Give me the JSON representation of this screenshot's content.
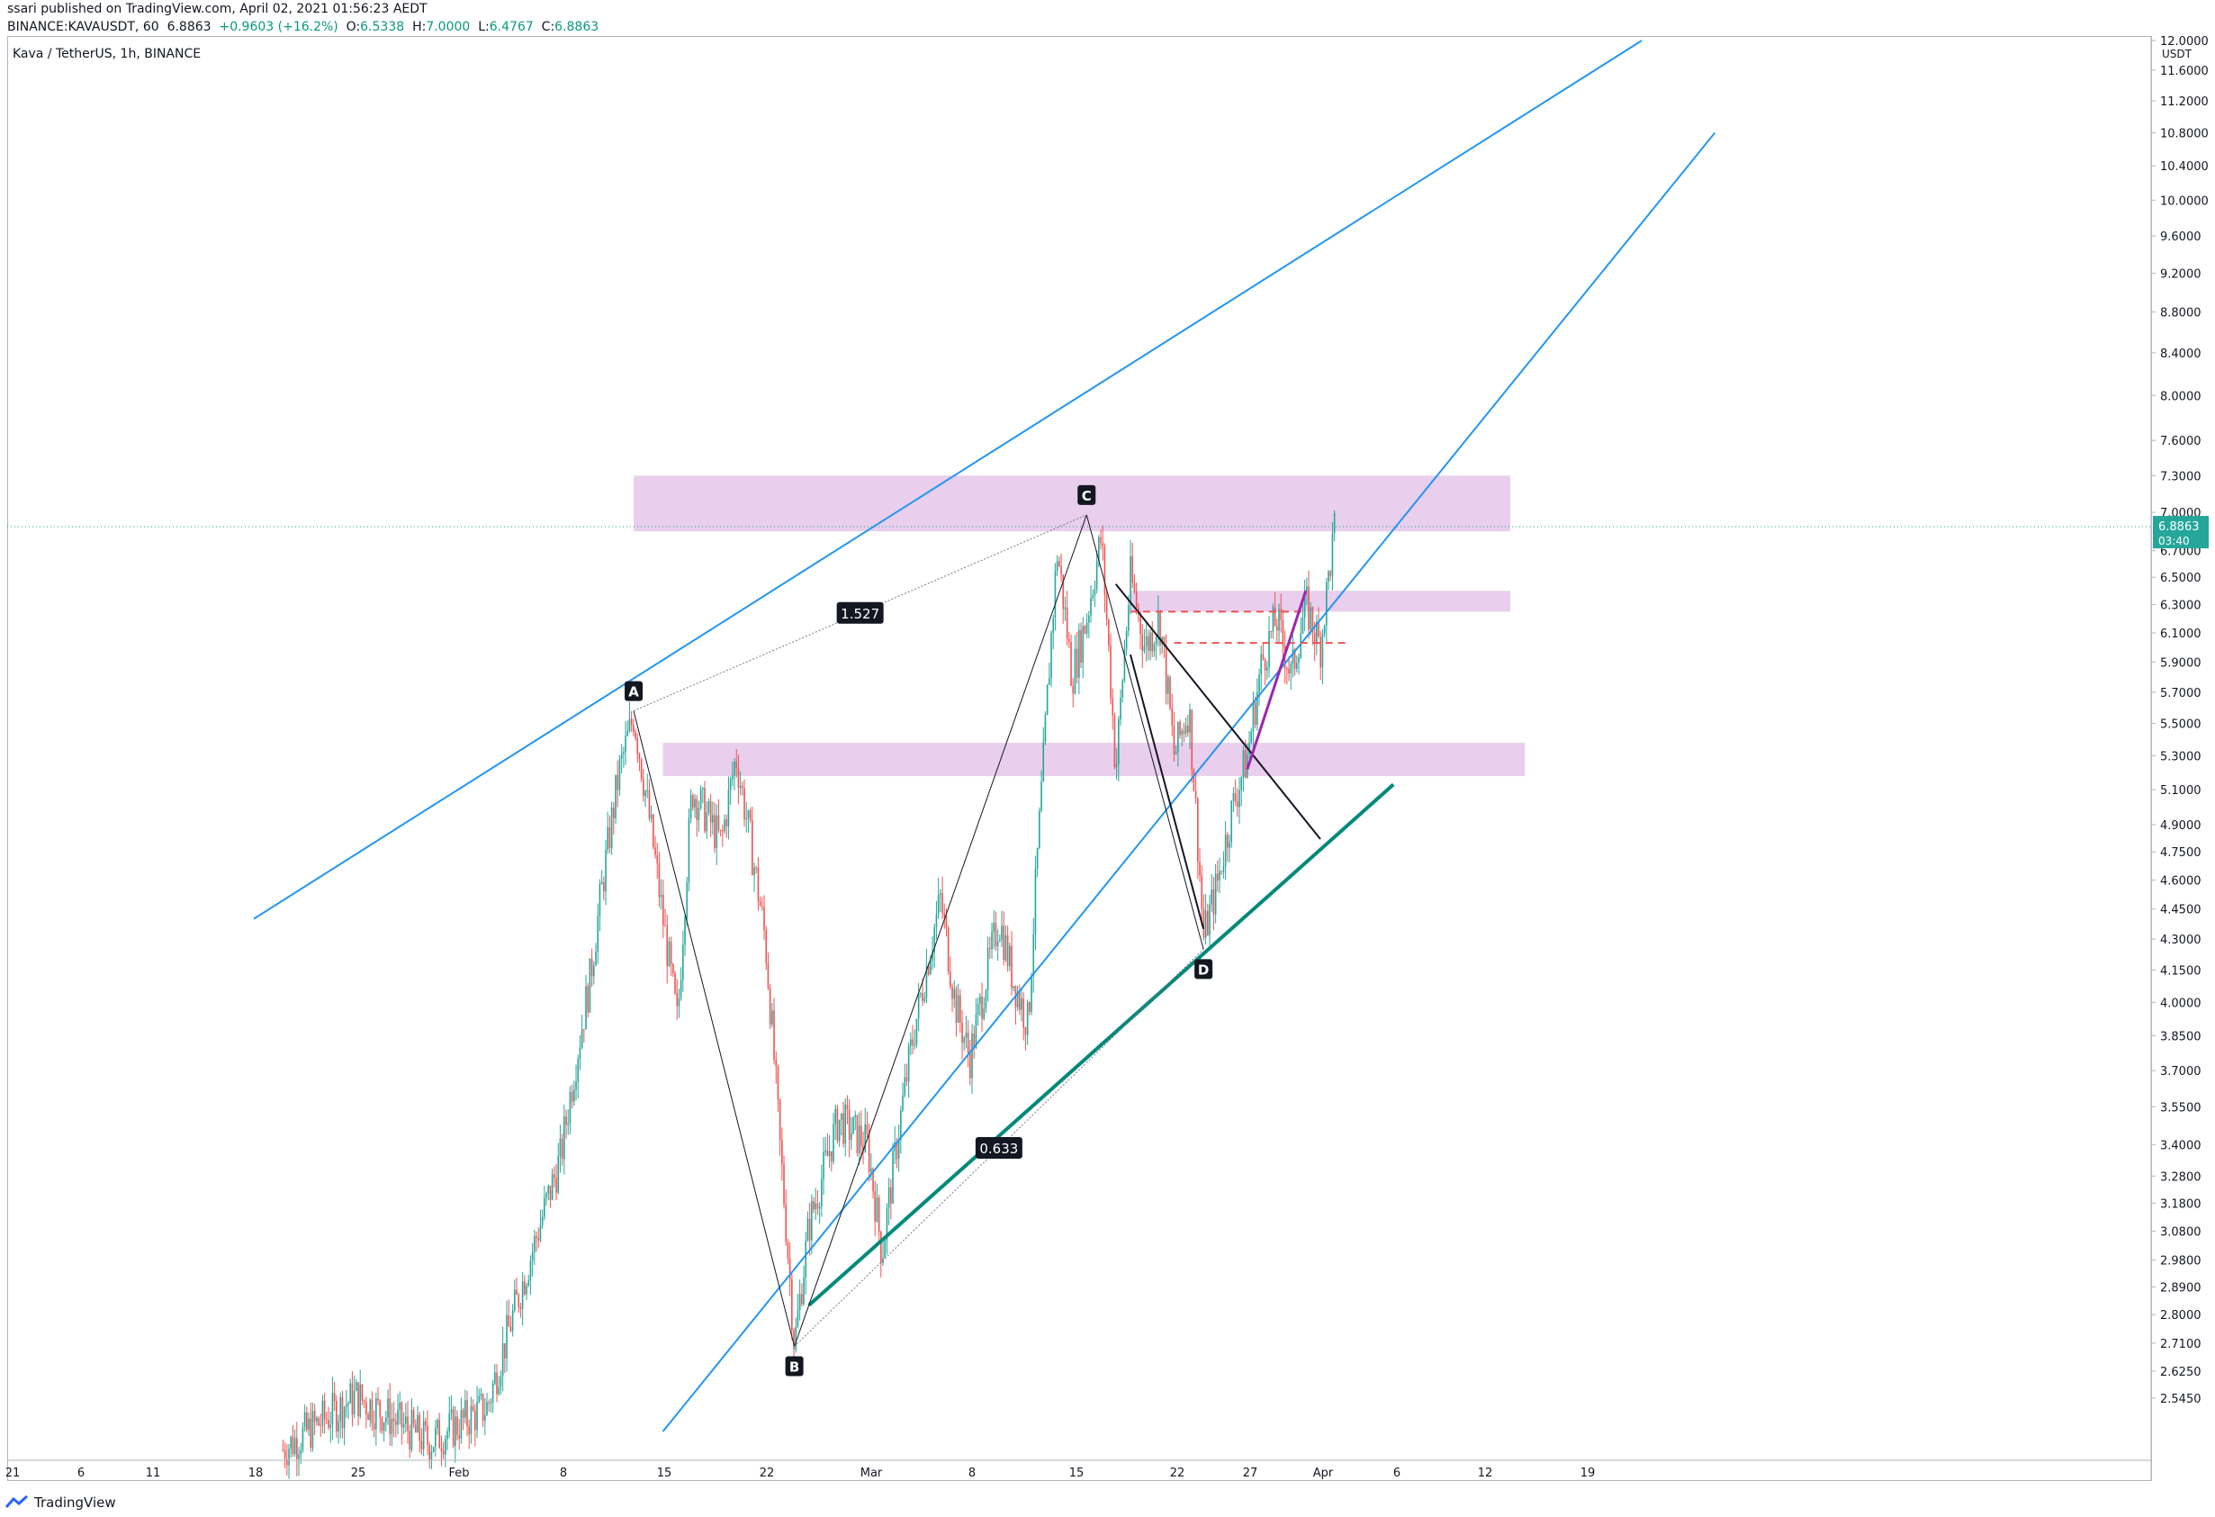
{
  "header": {
    "published": "ssari published on TradingView.com, April 02, 2021 01:56:23 AEDT",
    "ticker": "BINANCE:KAVAUSDT, 60",
    "last": "6.8863",
    "change": "+0.9603 (+16.2%)",
    "o_label": "O:",
    "o": "6.5338",
    "h_label": "H:",
    "h": "7.0000",
    "l_label": "L:",
    "l": "6.4767",
    "c_label": "C:",
    "c": "6.8863"
  },
  "symbol_title": "Kava / TetherUS, 1h, BINANCE",
  "footer": {
    "brand": "TradingView"
  },
  "colors": {
    "up": "#26a69a",
    "down": "#ef5350",
    "trend": "#2196f3",
    "zone": "#e1bee7",
    "badge": "#26a69a"
  },
  "chart_data": {
    "type": "line",
    "scale": "log",
    "ylim": [
      2.45,
      12.0
    ],
    "price_unit": "USDT",
    "y_ticks": [
      "12.0000",
      "11.6000",
      "11.2000",
      "10.8000",
      "10.4000",
      "10.0000",
      "9.6000",
      "9.2000",
      "8.8000",
      "8.4000",
      "8.0000",
      "7.6000",
      "7.3000",
      "7.0000",
      "6.7000",
      "6.5000",
      "6.3000",
      "6.1000",
      "5.9000",
      "5.7000",
      "5.5000",
      "5.3000",
      "5.1000",
      "4.9000",
      "4.7500",
      "4.6000",
      "4.4500",
      "4.3000",
      "4.1500",
      "4.0000",
      "3.8500",
      "3.7000",
      "3.5500",
      "3.4000",
      "3.2800",
      "3.1800",
      "3.0800",
      "2.9800",
      "2.8900",
      "2.8000",
      "2.7100",
      "2.6250",
      "2.5450"
    ],
    "x_ticks": [
      "21",
      "6",
      "11",
      "18",
      "25",
      "Feb",
      "8",
      "15",
      "22",
      "Mar",
      "8",
      "15",
      "22",
      "27",
      "Apr",
      "6",
      "12",
      "19"
    ],
    "last_price": {
      "value": "6.8863",
      "countdown": "03:40"
    },
    "harmonic_pattern": {
      "points": [
        {
          "label": "A",
          "date": "2021-02-13",
          "price": 5.58
        },
        {
          "label": "B",
          "date": "2021-02-24",
          "price": 2.7
        },
        {
          "label": "C",
          "date": "2021-03-16",
          "price": 6.98
        },
        {
          "label": "D",
          "date": "2021-03-24",
          "price": 4.25
        }
      ],
      "ratios": [
        {
          "label": "1.527",
          "between": "A-C"
        },
        {
          "label": "0.633",
          "between": "B-D"
        }
      ]
    },
    "zones": [
      {
        "from_date": "2021-02-13",
        "to_date": "2021-04-14",
        "top": 7.3,
        "bottom": 6.85
      },
      {
        "from_date": "2021-03-19",
        "to_date": "2021-04-14",
        "top": 6.4,
        "bottom": 6.25
      },
      {
        "from_date": "2021-02-15",
        "to_date": "2021-04-15",
        "top": 5.38,
        "bottom": 5.18
      }
    ],
    "trendlines": [
      {
        "name": "upper",
        "from": {
          "date": "2021-01-18",
          "price": 4.4
        },
        "to": {
          "date": "2021-04-23",
          "price": 12.0
        }
      },
      {
        "name": "lower",
        "from": {
          "date": "2021-02-15",
          "price": 2.45
        },
        "to": {
          "date": "2021-04-28",
          "price": 10.8
        }
      }
    ],
    "series_points": [
      [
        "2021-01-20",
        2.4
      ],
      [
        "2021-01-25",
        2.55
      ],
      [
        "2021-01-30",
        2.42
      ],
      [
        "2021-02-03",
        2.52
      ],
      [
        "2021-02-06",
        3.0
      ],
      [
        "2021-02-08",
        3.35
      ],
      [
        "2021-02-10",
        4.1
      ],
      [
        "2021-02-12",
        5.2
      ],
      [
        "2021-02-13",
        5.55
      ],
      [
        "2021-02-15",
        4.4
      ],
      [
        "2021-02-16",
        3.9
      ],
      [
        "2021-02-17",
        5.1
      ],
      [
        "2021-02-19",
        4.8
      ],
      [
        "2021-02-20",
        5.3
      ],
      [
        "2021-02-21",
        4.8
      ],
      [
        "2021-02-22",
        4.3
      ],
      [
        "2021-02-23",
        3.4
      ],
      [
        "2021-02-24",
        2.7
      ],
      [
        "2021-02-25",
        3.1
      ],
      [
        "2021-02-27",
        3.5
      ],
      [
        "2021-03-01",
        3.4
      ],
      [
        "2021-03-02",
        3.0
      ],
      [
        "2021-03-04",
        3.8
      ],
      [
        "2021-03-06",
        4.5
      ],
      [
        "2021-03-07",
        4.0
      ],
      [
        "2021-03-08",
        3.75
      ],
      [
        "2021-03-10",
        4.4
      ],
      [
        "2021-03-11",
        4.1
      ],
      [
        "2021-03-12",
        3.9
      ],
      [
        "2021-03-13",
        5.2
      ],
      [
        "2021-03-14",
        6.7
      ],
      [
        "2021-03-15",
        5.8
      ],
      [
        "2021-03-16",
        6.2
      ],
      [
        "2021-03-17",
        6.8
      ],
      [
        "2021-03-18",
        5.2
      ],
      [
        "2021-03-19",
        6.5
      ],
      [
        "2021-03-20",
        6.0
      ],
      [
        "2021-03-21",
        6.2
      ],
      [
        "2021-03-22",
        5.3
      ],
      [
        "2021-03-23",
        5.6
      ],
      [
        "2021-03-24",
        4.3
      ],
      [
        "2021-03-25",
        4.6
      ],
      [
        "2021-03-26",
        5.0
      ],
      [
        "2021-03-27",
        5.3
      ],
      [
        "2021-03-28",
        5.9
      ],
      [
        "2021-03-29",
        6.2
      ],
      [
        "2021-03-30",
        5.8
      ],
      [
        "2021-03-31",
        6.3
      ],
      [
        "2021-04-01",
        6.0
      ],
      [
        "2021-04-02",
        6.89
      ]
    ]
  }
}
